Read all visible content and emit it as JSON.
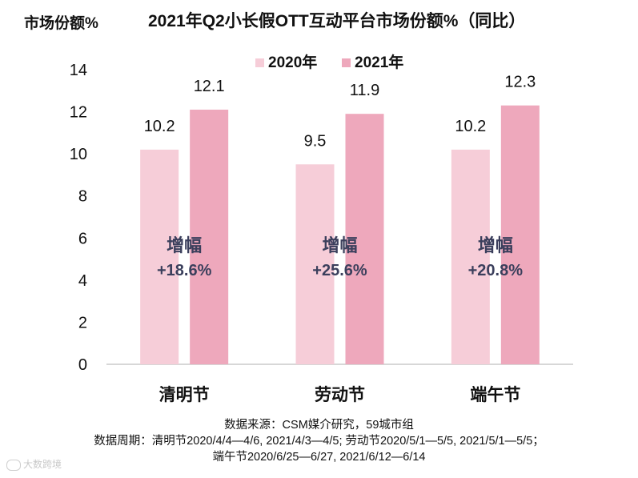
{
  "unit_label": "市场份额%",
  "source": {
    "line1": "数据来源：CSM媒介研究，59城市组",
    "line2": "数据周期：清明节2020/4/4—4/6, 2021/4/3—4/5; 劳动节2020/5/1—5/5, 2021/5/1—5/5；",
    "line3": "端午节2020/6/25—6/27, 2021/6/12—6/14"
  },
  "watermark": "大数跨境",
  "colors": {
    "series2020": "#f6cdd8",
    "series2021": "#eea8bc",
    "axis": "#bfbfbf",
    "annotation": "#3b3f5c"
  },
  "chart_data": {
    "type": "bar",
    "title": "2021年Q2小长假OTT互动平台市场份额%（同比）",
    "ylabel": "市场份额%",
    "xlabel": "",
    "ylim": [
      0,
      14
    ],
    "yticks": [
      0,
      2,
      4,
      6,
      8,
      10,
      12,
      14
    ],
    "categories": [
      "清明节",
      "劳动节",
      "端午节"
    ],
    "series": [
      {
        "name": "2020年",
        "values": [
          10.2,
          9.5,
          10.2
        ]
      },
      {
        "name": "2021年",
        "values": [
          12.1,
          11.9,
          12.3
        ]
      }
    ],
    "value_labels": {
      "2020年": [
        "10.2",
        "9.5",
        "10.2"
      ],
      "2021年": [
        "12.1",
        "11.9",
        "12.3"
      ]
    },
    "annotations": [
      {
        "label": "增幅",
        "value": "+18.6%"
      },
      {
        "label": "增幅",
        "value": "+25.6%"
      },
      {
        "label": "增幅",
        "value": "+20.8%"
      }
    ],
    "legend_position": "top-center",
    "grid": false
  }
}
